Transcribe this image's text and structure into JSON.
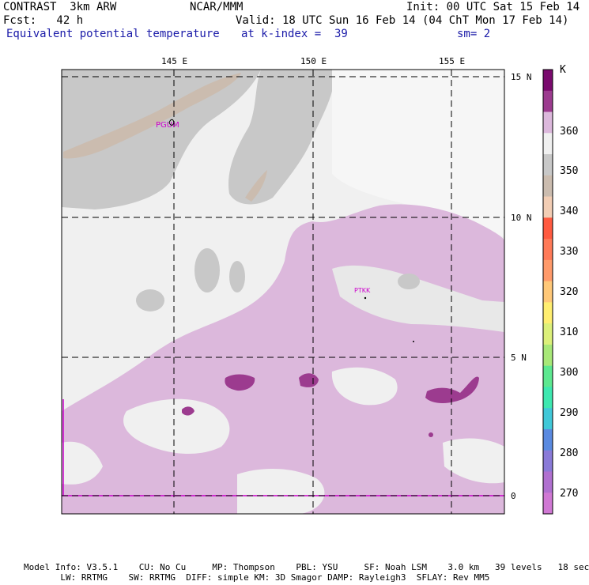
{
  "header": {
    "model": "CONTRAST  3km ARW",
    "center": "NCAR/MMM",
    "init": "Init: 00 UTC Sat 15 Feb 14",
    "fcst": "Fcst:   42 h",
    "valid": "Valid: 18 UTC Sun 16 Feb 14 (04 ChT Mon 17 Feb 14)",
    "field": "Equivalent potential temperature",
    "level": "at k-index =  39",
    "smooth": "sm= 2"
  },
  "map": {
    "lon_labels": [
      "145 E",
      "150 E",
      "155 E"
    ],
    "lat_labels": [
      "15 N",
      "10 N",
      "5 N",
      "0"
    ],
    "stations": [
      "PGUM",
      "PTKK"
    ]
  },
  "colorbar": {
    "unit": "K",
    "labels": [
      "360",
      "350",
      "340",
      "330",
      "320",
      "310",
      "300",
      "290",
      "280",
      "270"
    ],
    "colors": [
      "#7a0a6e",
      "#9c3b8f",
      "#dcb8dc",
      "#f0f0f0",
      "#c8c8c8",
      "#cbbcaf",
      "#f2cdb4",
      "#ff5a40",
      "#ff7a58",
      "#ff9a6a",
      "#ffc878",
      "#ffee70",
      "#dcf07a",
      "#a8e878",
      "#5de890",
      "#3ee8b0",
      "#40c8d8",
      "#5a8ae0",
      "#8a7ad8",
      "#b070d0",
      "#d078d4"
    ]
  },
  "footer": {
    "line1": "Model Info: V3.5.1    CU: No Cu     MP: Thompson    PBL: YSU     SF: Noah LSM    3.0 km   39 levels   18 sec",
    "line2": "       LW: RRTMG    SW: RRTMG  DIFF: simple KM: 3D Smagor DAMP: Rayleigh3  SFLAY: Rev MM5"
  }
}
